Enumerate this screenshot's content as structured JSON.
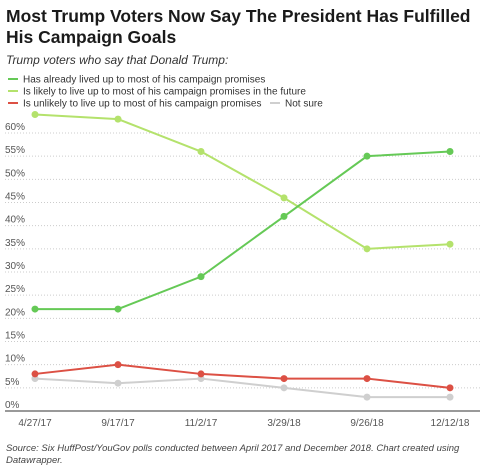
{
  "chart_data": {
    "type": "line",
    "title": "Most Trump Voters Now Say The President Has Fulfilled His Campaign Goals",
    "subtitle": "Trump voters who say that Donald Trump:",
    "source": "Source: Six HuffPost/YouGov polls conducted between April 2017 and December 2018. Chart created using Datawrapper.",
    "categories": [
      "4/27/17",
      "9/17/17",
      "11/2/17",
      "3/29/18",
      "9/26/18",
      "12/12/18"
    ],
    "series": [
      {
        "name": "Has already lived up to most of his campaign promises",
        "color": "#65c956",
        "values": [
          22,
          22,
          29,
          42,
          55,
          56
        ]
      },
      {
        "name": "Is likely to live up to most of his campaign promises in the future",
        "color": "#b4e26c",
        "values": [
          64,
          63,
          56,
          46,
          35,
          36
        ]
      },
      {
        "name": "Is unlikely to live up to most of his campaign promises",
        "color": "#dc5044",
        "values": [
          8,
          10,
          8,
          7,
          7,
          5
        ]
      },
      {
        "name": "Not sure",
        "color": "#cfcfcf",
        "values": [
          7,
          6,
          7,
          5,
          3,
          3
        ]
      }
    ],
    "ylim": [
      0,
      65
    ],
    "yticks": [
      {
        "value": 0,
        "label": "0%"
      },
      {
        "value": 5,
        "label": "5%"
      },
      {
        "value": 10,
        "label": "10%"
      },
      {
        "value": 15,
        "label": "15%"
      },
      {
        "value": 20,
        "label": "20%"
      },
      {
        "value": 25,
        "label": "25%"
      },
      {
        "value": 30,
        "label": "30%"
      },
      {
        "value": 35,
        "label": "35%"
      },
      {
        "value": 40,
        "label": "40%"
      },
      {
        "value": 45,
        "label": "45%"
      },
      {
        "value": 50,
        "label": "50%"
      },
      {
        "value": 55,
        "label": "55%"
      },
      {
        "value": 60,
        "label": "60%"
      }
    ],
    "grid": true
  }
}
